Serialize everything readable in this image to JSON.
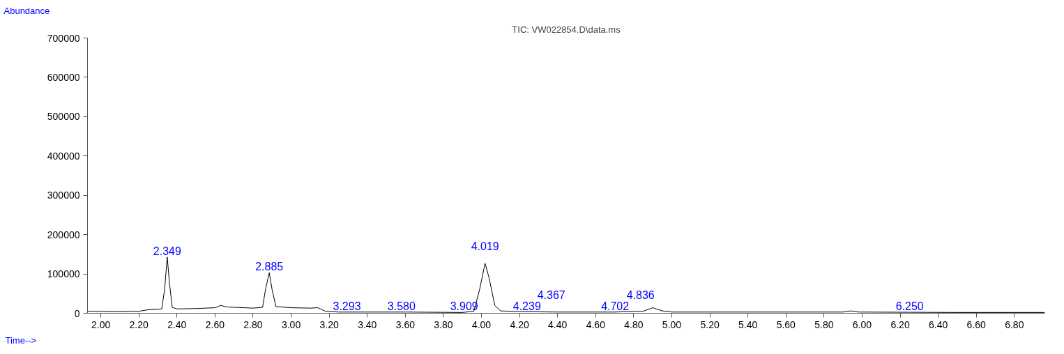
{
  "chart_data": {
    "type": "line",
    "title": "TIC: VW022854.D\\data.ms",
    "ylabel": "Abundance",
    "xlabel": "Time-->",
    "series": [
      {
        "color": "#000000",
        "x": [
          1.93,
          2.1,
          2.2,
          2.25,
          2.3,
          2.32,
          2.335,
          2.349,
          2.36,
          2.375,
          2.4,
          2.5,
          2.6,
          2.63,
          2.66,
          2.8,
          2.85,
          2.865,
          2.885,
          2.9,
          2.92,
          3.0,
          3.1,
          3.14,
          3.18,
          3.25,
          3.4,
          3.6,
          3.9,
          3.96,
          3.99,
          4.019,
          4.04,
          4.07,
          4.1,
          4.2,
          4.4,
          4.7,
          4.85,
          4.9,
          4.95,
          5.0,
          5.5,
          5.9,
          5.94,
          5.98,
          6.5,
          6.96
        ],
        "values": [
          5000,
          4000,
          5000,
          9000,
          10000,
          11000,
          60000,
          143000,
          80000,
          15000,
          11000,
          12000,
          14000,
          20000,
          16000,
          13000,
          15000,
          60000,
          103000,
          60000,
          17000,
          14000,
          13000,
          14000,
          5000,
          3000,
          3000,
          3000,
          2000,
          5000,
          60000,
          127000,
          90000,
          20000,
          6000,
          4000,
          3000,
          3000,
          5000,
          14000,
          6000,
          3000,
          3000,
          3000,
          6000,
          3000,
          2000,
          2000
        ]
      }
    ],
    "xlim": [
      1.93,
      6.96
    ],
    "ylim": [
      0,
      700000
    ],
    "xticks": [
      {
        "value": 2.0,
        "label": "2.00"
      },
      {
        "value": 2.2,
        "label": "2.20"
      },
      {
        "value": 2.4,
        "label": "2.40"
      },
      {
        "value": 2.6,
        "label": "2.60"
      },
      {
        "value": 2.8,
        "label": "2.80"
      },
      {
        "value": 3.0,
        "label": "3.00"
      },
      {
        "value": 3.2,
        "label": "3.20"
      },
      {
        "value": 3.4,
        "label": "3.40"
      },
      {
        "value": 3.6,
        "label": "3.60"
      },
      {
        "value": 3.8,
        "label": "3.80"
      },
      {
        "value": 4.0,
        "label": "4.00"
      },
      {
        "value": 4.2,
        "label": "4.20"
      },
      {
        "value": 4.4,
        "label": "4.40"
      },
      {
        "value": 4.6,
        "label": "4.60"
      },
      {
        "value": 4.8,
        "label": "4.80"
      },
      {
        "value": 5.0,
        "label": "5.00"
      },
      {
        "value": 5.2,
        "label": "5.20"
      },
      {
        "value": 5.4,
        "label": "5.40"
      },
      {
        "value": 5.6,
        "label": "5.60"
      },
      {
        "value": 5.8,
        "label": "5.80"
      },
      {
        "value": 6.0,
        "label": "6.00"
      },
      {
        "value": 6.2,
        "label": "6.20"
      },
      {
        "value": 6.4,
        "label": "6.40"
      },
      {
        "value": 6.6,
        "label": "6.60"
      },
      {
        "value": 6.8,
        "label": "6.80"
      }
    ],
    "yticks": [
      0,
      100000,
      200000,
      300000,
      400000,
      500000,
      600000,
      700000
    ],
    "grid": false,
    "annotations": [
      {
        "text": "2.349",
        "x": 2.349,
        "y": 143000
      },
      {
        "text": "2.885",
        "x": 2.885,
        "y": 103000
      },
      {
        "text": "3.293",
        "x": 3.293,
        "y": 2000
      },
      {
        "text": "3.580",
        "x": 3.58,
        "y": 2000
      },
      {
        "text": "3.909",
        "x": 3.909,
        "y": 2000
      },
      {
        "text": "4.019",
        "x": 4.019,
        "y": 127000
      },
      {
        "text": "4.239",
        "x": 4.239,
        "y": 2000
      },
      {
        "text": "4.367",
        "x": 4.367,
        "y": 2000
      },
      {
        "text": "4.702",
        "x": 4.702,
        "y": 2000
      },
      {
        "text": "4.836",
        "x": 4.836,
        "y": 2000
      },
      {
        "text": "6.250",
        "x": 6.25,
        "y": 2000
      }
    ]
  }
}
